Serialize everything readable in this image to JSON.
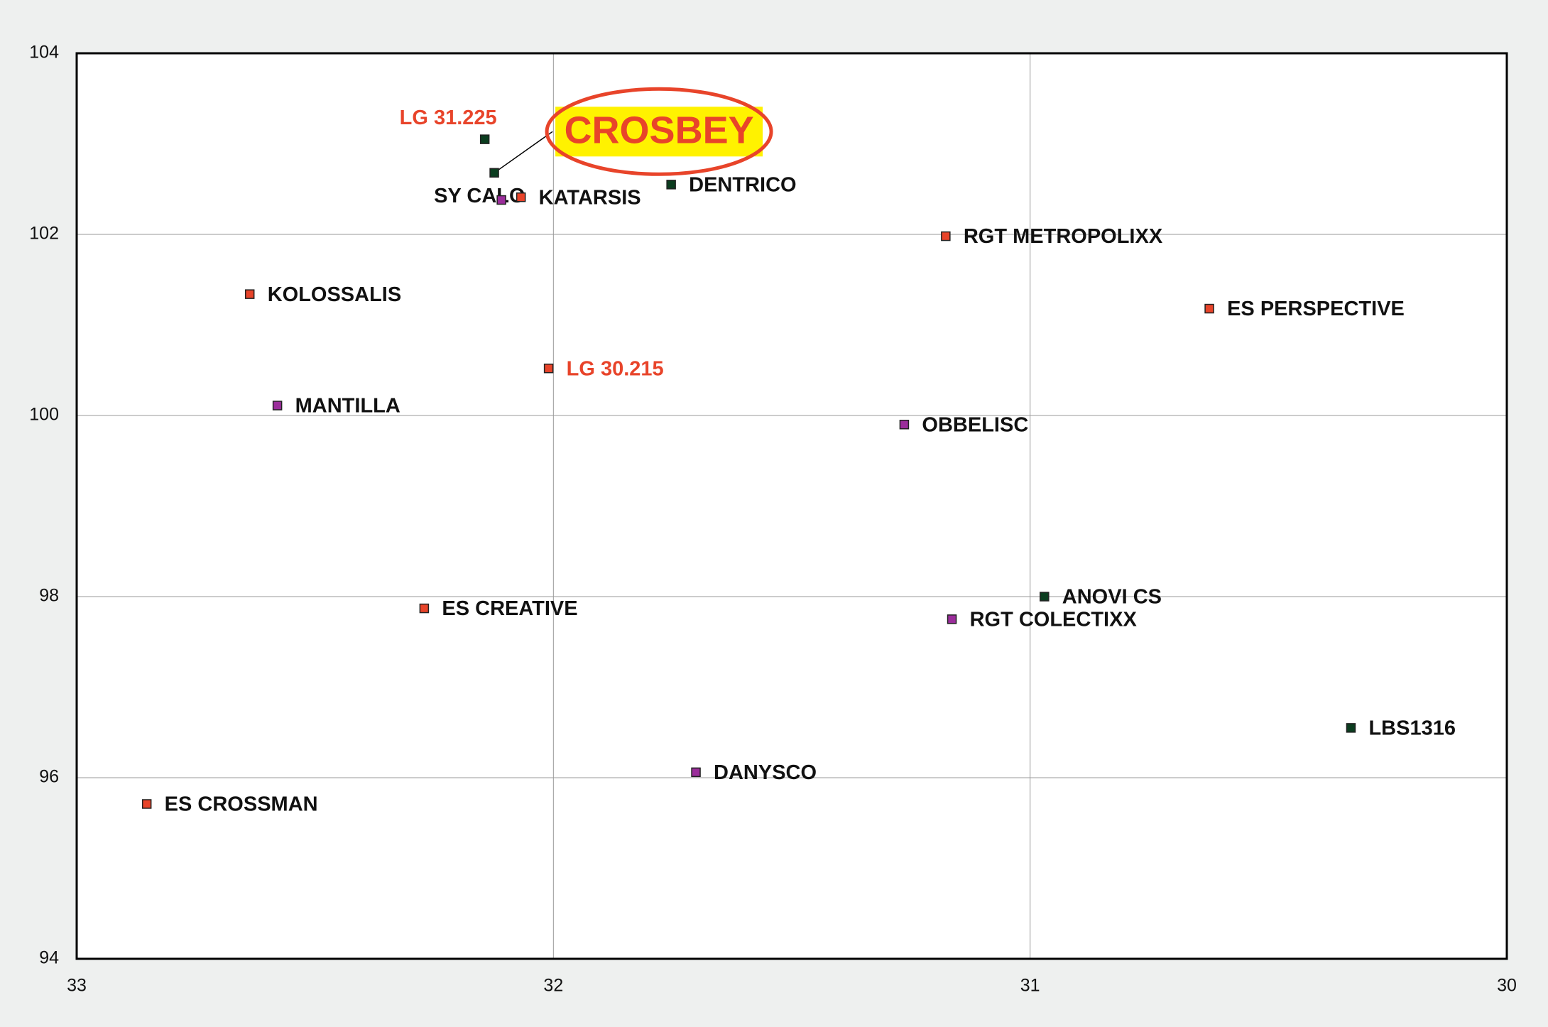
{
  "chart_data": {
    "type": "scatter",
    "xlim": [
      33,
      30
    ],
    "ylim": [
      94,
      104
    ],
    "xticks": [
      33,
      32,
      31,
      30
    ],
    "yticks": [
      94,
      96,
      98,
      100,
      102,
      104
    ],
    "grid": true,
    "points": [
      {
        "label": "LG 31.225",
        "x": 32.144,
        "y": 103.05,
        "color": "#0b3d1f",
        "label_color": "#e8442a"
      },
      {
        "label": "CROSBEY",
        "x": 32.124,
        "y": 102.68,
        "color": "#0b3d1f",
        "label_color": "#e8442a",
        "highlight": true
      },
      {
        "label": "SY CALO",
        "x": 32.109,
        "y": 102.38,
        "color": "#9b2d9b",
        "label_color": "#111111"
      },
      {
        "label": "KATARSIS",
        "x": 32.068,
        "y": 102.41,
        "color": "#e8442a",
        "label_color": "#111111"
      },
      {
        "label": "DENTRICO",
        "x": 31.753,
        "y": 102.55,
        "color": "#0b3d1f",
        "label_color": "#111111"
      },
      {
        "label": "RGT METROPOLIXX",
        "x": 31.177,
        "y": 101.98,
        "color": "#e8442a",
        "label_color": "#111111"
      },
      {
        "label": "ES PERSPECTIVE",
        "x": 30.624,
        "y": 101.18,
        "color": "#e8442a",
        "label_color": "#111111"
      },
      {
        "label": "KOLOSSALIS",
        "x": 32.637,
        "y": 101.34,
        "color": "#e8442a",
        "label_color": "#111111"
      },
      {
        "label": "LG 30.215",
        "x": 32.01,
        "y": 100.52,
        "color": "#e8442a",
        "label_color": "#e8442a"
      },
      {
        "label": "MANTILLA",
        "x": 32.579,
        "y": 100.11,
        "color": "#9b2d9b",
        "label_color": "#111111"
      },
      {
        "label": "OBBELISC",
        "x": 31.264,
        "y": 99.9,
        "color": "#9b2d9b",
        "label_color": "#111111"
      },
      {
        "label": "ANOVI CS",
        "x": 30.97,
        "y": 98.0,
        "color": "#0b3d1f",
        "label_color": "#111111"
      },
      {
        "label": "RGT COLECTIXX",
        "x": 31.164,
        "y": 97.75,
        "color": "#9b2d9b",
        "label_color": "#111111"
      },
      {
        "label": "ES CREATIVE",
        "x": 32.271,
        "y": 97.87,
        "color": "#e8442a",
        "label_color": "#111111"
      },
      {
        "label": "LBS1316",
        "x": 30.327,
        "y": 96.55,
        "color": "#0b3d1f",
        "label_color": "#111111"
      },
      {
        "label": "DANYSCO",
        "x": 31.701,
        "y": 96.06,
        "color": "#9b2d9b",
        "label_color": "#111111"
      },
      {
        "label": "ES CROSSMAN",
        "x": 32.853,
        "y": 95.71,
        "color": "#e8442a",
        "label_color": "#111111"
      }
    ]
  }
}
